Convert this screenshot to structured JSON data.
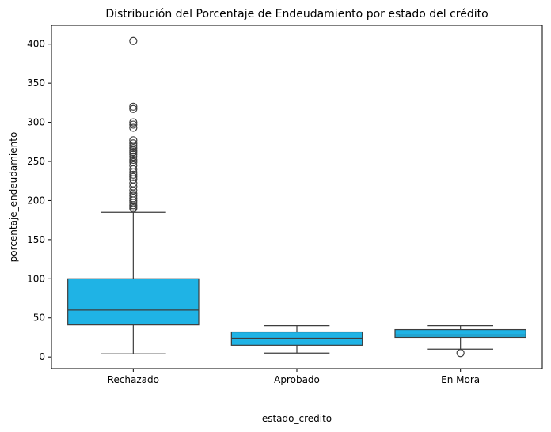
{
  "chart_data": {
    "type": "box",
    "title": "Distribución del Porcentaje de Endeudamiento por estado del crédito",
    "xlabel": "estado_credito",
    "ylabel": "porcentaje_endeudamiento",
    "ylim": [
      -15,
      424
    ],
    "yticks": [
      0,
      50,
      100,
      150,
      200,
      250,
      300,
      350,
      400
    ],
    "grid": false,
    "box_color": "#1fb3e5",
    "line_color": "#3d3d3d",
    "categories": [
      "Rechazado",
      "Aprobado",
      "En Mora"
    ],
    "boxes": [
      {
        "category": "Rechazado",
        "whisker_low": 4,
        "q1": 41,
        "median": 60,
        "q3": 100,
        "whisker_high": 185,
        "outliers": [
          190,
          192,
          194,
          197,
          200,
          203,
          206,
          209,
          213,
          218,
          222,
          227,
          230,
          233,
          236,
          240,
          245,
          249,
          252,
          256,
          259,
          262,
          264,
          267,
          270,
          273,
          277,
          293,
          297,
          300,
          317,
          320,
          404
        ]
      },
      {
        "category": "Aprobado",
        "whisker_low": 5,
        "q1": 15,
        "median": 24,
        "q3": 32,
        "whisker_high": 40,
        "outliers": []
      },
      {
        "category": "En Mora",
        "whisker_low": 10,
        "q1": 25,
        "median": 28,
        "q3": 35,
        "whisker_high": 40,
        "outliers": [
          5
        ]
      }
    ]
  }
}
